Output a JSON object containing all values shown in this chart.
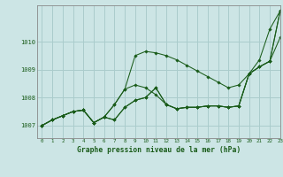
{
  "title": "Graphe pression niveau de la mer (hPa)",
  "bg_color": "#cce5e5",
  "grid_color": "#aacccc",
  "line_color": "#1a5c1a",
  "xlim": [
    -0.5,
    23
  ],
  "ylim": [
    1006.55,
    1011.3
  ],
  "yticks": [
    1007,
    1008,
    1009,
    1010
  ],
  "xticks": [
    0,
    1,
    2,
    3,
    4,
    5,
    6,
    7,
    8,
    9,
    10,
    11,
    12,
    13,
    14,
    15,
    16,
    17,
    18,
    19,
    20,
    21,
    22,
    23
  ],
  "series": [
    [
      1007.0,
      1007.2,
      1007.35,
      1007.5,
      1007.55,
      1007.1,
      1007.3,
      1007.2,
      1007.65,
      1007.9,
      1008.0,
      1008.35,
      1007.75,
      1007.6,
      1007.65,
      1007.65,
      1007.7,
      1007.7,
      1007.65,
      1007.7,
      1008.85,
      1009.1,
      1009.3,
      1010.15
    ],
    [
      1007.0,
      1007.2,
      1007.35,
      1007.5,
      1007.55,
      1007.1,
      1007.3,
      1007.2,
      1007.65,
      1007.9,
      1008.0,
      1008.35,
      1007.75,
      1007.6,
      1007.65,
      1007.65,
      1007.7,
      1007.7,
      1007.65,
      1007.7,
      1008.85,
      1009.1,
      1009.3,
      1011.1
    ],
    [
      1007.0,
      1007.2,
      1007.35,
      1007.5,
      1007.55,
      1007.1,
      1007.3,
      1007.75,
      1008.3,
      1008.45,
      1008.35,
      1008.1,
      1007.75,
      1007.6,
      1007.65,
      1007.65,
      1007.7,
      1007.7,
      1007.65,
      1007.7,
      1008.85,
      1009.1,
      1009.3,
      1011.1
    ],
    [
      1007.0,
      1007.2,
      1007.35,
      1007.5,
      1007.55,
      1007.1,
      1007.3,
      1007.75,
      1008.3,
      1009.5,
      1009.65,
      1009.6,
      1009.5,
      1009.35,
      1009.15,
      1008.95,
      1008.75,
      1008.55,
      1008.35,
      1008.45,
      1008.85,
      1009.35,
      1010.45,
      1011.1
    ]
  ]
}
